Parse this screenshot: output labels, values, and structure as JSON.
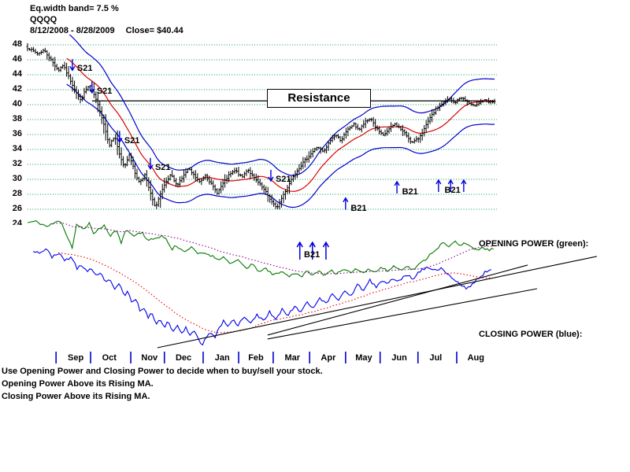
{
  "header": {
    "band_label": "Eq.width band= 7.5 %",
    "symbol": "QQQQ",
    "date_range": "8/12/2008 - 8/28/2009",
    "close_label": "Close= $40.44"
  },
  "footer": {
    "lines": [
      "Use Opening Power and Closing Power to decide when to buy/sell your stock.",
      "Opening Power Above its Rising MA.",
      "Closing Power Above its Rising MA."
    ]
  },
  "colors": {
    "grid": "#00A050",
    "candle": "#000000",
    "band": "#0000CC",
    "ma": "#DD0000",
    "arrow": "#0000DD",
    "opening_power": "#007A00",
    "opening_ma": "#880088",
    "closing_power": "#0000EE",
    "closing_ma": "#EE0000",
    "trendline": "#000000",
    "month_tick": "#0000CC",
    "resistance_line": "#000000"
  },
  "chart_data": {
    "type": "candlestick",
    "symbol": "QQQQ",
    "period": "8/12/2008 - 8/28/2009",
    "close": 40.44,
    "band_width_pct": 7.5,
    "ylim": [
      24,
      49
    ],
    "price_axis": [
      48,
      46,
      44,
      42,
      40,
      38,
      36,
      34,
      32,
      30,
      28,
      26
    ],
    "price_axis_clipped": 24,
    "months": [
      "Sep",
      "Oct",
      "Nov",
      "Dec",
      "Jan",
      "Feb",
      "Mar",
      "Apr",
      "May",
      "Jun",
      "Jul",
      "Aug"
    ],
    "month_ticks_t": [
      0.061,
      0.135,
      0.221,
      0.293,
      0.376,
      0.452,
      0.526,
      0.604,
      0.681,
      0.755,
      0.836,
      0.919
    ],
    "month_label_t": [
      0.103,
      0.175,
      0.261,
      0.334,
      0.417,
      0.489,
      0.567,
      0.644,
      0.72,
      0.796,
      0.874,
      0.96
    ],
    "num_bars": 240,
    "close_path": [
      [
        0.0,
        47.6
      ],
      [
        0.022,
        46.8
      ],
      [
        0.035,
        47.3
      ],
      [
        0.052,
        45.8
      ],
      [
        0.066,
        44.6
      ],
      [
        0.076,
        45.3
      ],
      [
        0.089,
        43.6
      ],
      [
        0.103,
        41.8
      ],
      [
        0.113,
        40.6
      ],
      [
        0.123,
        41.8
      ],
      [
        0.133,
        42.6
      ],
      [
        0.143,
        41.2
      ],
      [
        0.155,
        39.2
      ],
      [
        0.165,
        37.0
      ],
      [
        0.175,
        34.6
      ],
      [
        0.187,
        35.8
      ],
      [
        0.197,
        33.2
      ],
      [
        0.207,
        31.6
      ],
      [
        0.218,
        33.4
      ],
      [
        0.229,
        31.0
      ],
      [
        0.239,
        29.6
      ],
      [
        0.251,
        30.6
      ],
      [
        0.261,
        28.6
      ],
      [
        0.273,
        26.2
      ],
      [
        0.283,
        27.8
      ],
      [
        0.295,
        29.4
      ],
      [
        0.307,
        30.6
      ],
      [
        0.319,
        29.2
      ],
      [
        0.331,
        30.2
      ],
      [
        0.344,
        31.4
      ],
      [
        0.358,
        30.4
      ],
      [
        0.369,
        29.6
      ],
      [
        0.381,
        30.6
      ],
      [
        0.395,
        29.2
      ],
      [
        0.406,
        28.2
      ],
      [
        0.418,
        29.4
      ],
      [
        0.432,
        30.6
      ],
      [
        0.445,
        31.2
      ],
      [
        0.459,
        30.2
      ],
      [
        0.471,
        31.4
      ],
      [
        0.482,
        30.4
      ],
      [
        0.496,
        29.4
      ],
      [
        0.509,
        28.4
      ],
      [
        0.521,
        27.2
      ],
      [
        0.533,
        26.1
      ],
      [
        0.545,
        27.6
      ],
      [
        0.557,
        29.0
      ],
      [
        0.568,
        30.4
      ],
      [
        0.582,
        31.6
      ],
      [
        0.595,
        32.6
      ],
      [
        0.609,
        33.6
      ],
      [
        0.621,
        34.4
      ],
      [
        0.634,
        33.6
      ],
      [
        0.648,
        35.2
      ],
      [
        0.659,
        36.0
      ],
      [
        0.671,
        35.2
      ],
      [
        0.685,
        36.6
      ],
      [
        0.698,
        37.4
      ],
      [
        0.71,
        36.6
      ],
      [
        0.722,
        37.6
      ],
      [
        0.735,
        38.2
      ],
      [
        0.747,
        36.8
      ],
      [
        0.761,
        35.8
      ],
      [
        0.772,
        36.6
      ],
      [
        0.786,
        37.4
      ],
      [
        0.798,
        36.8
      ],
      [
        0.81,
        36.0
      ],
      [
        0.823,
        34.9
      ],
      [
        0.836,
        35.4
      ],
      [
        0.85,
        36.8
      ],
      [
        0.862,
        38.2
      ],
      [
        0.875,
        39.4
      ],
      [
        0.889,
        40.2
      ],
      [
        0.902,
        40.8
      ],
      [
        0.914,
        40.2
      ],
      [
        0.928,
        41.0
      ],
      [
        0.941,
        40.4
      ],
      [
        0.953,
        39.8
      ],
      [
        0.965,
        40.2
      ],
      [
        0.977,
        40.6
      ],
      [
        0.988,
        40.3
      ],
      [
        1.0,
        40.44
      ]
    ],
    "resistance": {
      "label": "Resistance",
      "price": 40.5,
      "t_start": 0.138,
      "t_end": 1.0
    },
    "sell_signals": [
      {
        "label": "S21",
        "t": 0.096,
        "tip_price": 44.6
      },
      {
        "label": "S21",
        "t": 0.138,
        "tip_price": 41.6
      },
      {
        "label": "S21",
        "t": 0.197,
        "tip_price": 35.0
      },
      {
        "label": "S21",
        "t": 0.263,
        "tip_price": 31.4
      },
      {
        "label": "S21",
        "t": 0.521,
        "tip_price": 29.8
      }
    ],
    "buy_signals": [
      {
        "label": "B21",
        "arrows_t": [
          0.681
        ],
        "tip_price": 27.5,
        "label_t": 0.692
      },
      {
        "label": "B21",
        "arrows_t": [
          0.791
        ],
        "tip_price": 29.7,
        "label_t": 0.802
      },
      {
        "label": "B21",
        "arrows_t": [
          0.88,
          0.906,
          0.934
        ],
        "tip_price": 29.9,
        "label_t": 0.893
      }
    ],
    "power_panel": {
      "opening_label": "OPENING POWER (green):",
      "closing_label": "CLOSING POWER (blue):",
      "value_range": [
        0,
        100
      ],
      "opening_power": [
        [
          0.0,
          97
        ],
        [
          0.017,
          98
        ],
        [
          0.042,
          94
        ],
        [
          0.071,
          99
        ],
        [
          0.084,
          87
        ],
        [
          0.096,
          78
        ],
        [
          0.105,
          96
        ],
        [
          0.121,
          91
        ],
        [
          0.132,
          97
        ],
        [
          0.143,
          88
        ],
        [
          0.155,
          93
        ],
        [
          0.165,
          95
        ],
        [
          0.177,
          86
        ],
        [
          0.189,
          92
        ],
        [
          0.202,
          80
        ],
        [
          0.207,
          92
        ],
        [
          0.228,
          87
        ],
        [
          0.245,
          90
        ],
        [
          0.258,
          83
        ],
        [
          0.273,
          85
        ],
        [
          0.287,
          87
        ],
        [
          0.298,
          84
        ],
        [
          0.309,
          76
        ],
        [
          0.317,
          80
        ],
        [
          0.334,
          75
        ],
        [
          0.351,
          78
        ],
        [
          0.366,
          73
        ],
        [
          0.379,
          74
        ],
        [
          0.393,
          72
        ],
        [
          0.408,
          69
        ],
        [
          0.418,
          71
        ],
        [
          0.435,
          66
        ],
        [
          0.452,
          68
        ],
        [
          0.469,
          62
        ],
        [
          0.481,
          66
        ],
        [
          0.492,
          60
        ],
        [
          0.509,
          62
        ],
        [
          0.526,
          57
        ],
        [
          0.543,
          60
        ],
        [
          0.56,
          56
        ],
        [
          0.573,
          59
        ],
        [
          0.587,
          56
        ],
        [
          0.599,
          60
        ],
        [
          0.612,
          57
        ],
        [
          0.624,
          60
        ],
        [
          0.637,
          57
        ],
        [
          0.649,
          61
        ],
        [
          0.663,
          58
        ],
        [
          0.676,
          61
        ],
        [
          0.69,
          59
        ],
        [
          0.703,
          62
        ],
        [
          0.717,
          59
        ],
        [
          0.73,
          62
        ],
        [
          0.744,
          59
        ],
        [
          0.757,
          63
        ],
        [
          0.771,
          60
        ],
        [
          0.784,
          64
        ],
        [
          0.798,
          61
        ],
        [
          0.811,
          64
        ],
        [
          0.825,
          61
        ],
        [
          0.838,
          65
        ],
        [
          0.852,
          69
        ],
        [
          0.865,
          74
        ],
        [
          0.879,
          78
        ],
        [
          0.89,
          82
        ],
        [
          0.902,
          78
        ],
        [
          0.914,
          83
        ],
        [
          0.926,
          80
        ],
        [
          0.938,
          82
        ],
        [
          0.949,
          78
        ],
        [
          0.961,
          76
        ],
        [
          0.973,
          78
        ],
        [
          0.986,
          76
        ],
        [
          0.998,
          77
        ]
      ],
      "closing_power": [
        [
          0.012,
          76
        ],
        [
          0.025,
          74
        ],
        [
          0.039,
          77
        ],
        [
          0.052,
          71
        ],
        [
          0.066,
          74
        ],
        [
          0.079,
          68
        ],
        [
          0.093,
          71
        ],
        [
          0.106,
          62
        ],
        [
          0.116,
          65
        ],
        [
          0.126,
          60
        ],
        [
          0.137,
          62
        ],
        [
          0.147,
          56
        ],
        [
          0.157,
          58
        ],
        [
          0.167,
          51
        ],
        [
          0.177,
          54
        ],
        [
          0.187,
          46
        ],
        [
          0.197,
          50
        ],
        [
          0.207,
          41
        ],
        [
          0.216,
          45
        ],
        [
          0.224,
          35
        ],
        [
          0.233,
          40
        ],
        [
          0.241,
          28
        ],
        [
          0.25,
          33
        ],
        [
          0.258,
          24
        ],
        [
          0.266,
          29
        ],
        [
          0.275,
          20
        ],
        [
          0.283,
          25
        ],
        [
          0.292,
          17
        ],
        [
          0.3,
          22
        ],
        [
          0.31,
          14
        ],
        [
          0.32,
          19
        ],
        [
          0.329,
          13
        ],
        [
          0.339,
          17
        ],
        [
          0.347,
          10
        ],
        [
          0.358,
          16
        ],
        [
          0.366,
          8
        ],
        [
          0.373,
          3
        ],
        [
          0.379,
          8
        ],
        [
          0.39,
          14
        ],
        [
          0.4,
          9
        ],
        [
          0.41,
          17
        ],
        [
          0.42,
          22
        ],
        [
          0.43,
          17
        ],
        [
          0.44,
          23
        ],
        [
          0.45,
          19
        ],
        [
          0.464,
          25
        ],
        [
          0.477,
          20
        ],
        [
          0.491,
          27
        ],
        [
          0.504,
          22
        ],
        [
          0.518,
          29
        ],
        [
          0.531,
          24
        ],
        [
          0.545,
          31
        ],
        [
          0.558,
          26
        ],
        [
          0.572,
          34
        ],
        [
          0.585,
          29
        ],
        [
          0.599,
          37
        ],
        [
          0.612,
          32
        ],
        [
          0.626,
          40
        ],
        [
          0.639,
          35
        ],
        [
          0.653,
          43
        ],
        [
          0.666,
          38
        ],
        [
          0.68,
          46
        ],
        [
          0.693,
          41
        ],
        [
          0.707,
          50
        ],
        [
          0.72,
          45
        ],
        [
          0.733,
          53
        ],
        [
          0.747,
          48
        ],
        [
          0.761,
          53
        ],
        [
          0.771,
          50
        ],
        [
          0.784,
          55
        ],
        [
          0.798,
          52
        ],
        [
          0.811,
          58
        ],
        [
          0.825,
          54
        ],
        [
          0.838,
          60
        ],
        [
          0.852,
          62
        ],
        [
          0.862,
          63
        ],
        [
          0.875,
          60
        ],
        [
          0.885,
          63
        ],
        [
          0.899,
          58
        ],
        [
          0.912,
          54
        ],
        [
          0.926,
          50
        ],
        [
          0.939,
          47
        ],
        [
          0.953,
          50
        ],
        [
          0.966,
          55
        ],
        [
          0.979,
          59
        ],
        [
          0.993,
          61
        ]
      ],
      "trendlines": [
        {
          "t1": 0.278,
          "v1": 1.8,
          "t2": 1.219,
          "v2": 71.3
        },
        {
          "t1": 0.514,
          "v1": 11.4,
          "t2": 1.071,
          "v2": 64.7
        },
        {
          "t1": 0.514,
          "v1": 8.4,
          "t2": 1.091,
          "v2": 46.7
        }
      ],
      "buy_signal": {
        "label": "B21",
        "arrows_t": [
          0.583,
          0.61,
          0.639
        ],
        "tip_v": 82,
        "label_t": 0.592,
        "label_v": 76
      }
    }
  }
}
